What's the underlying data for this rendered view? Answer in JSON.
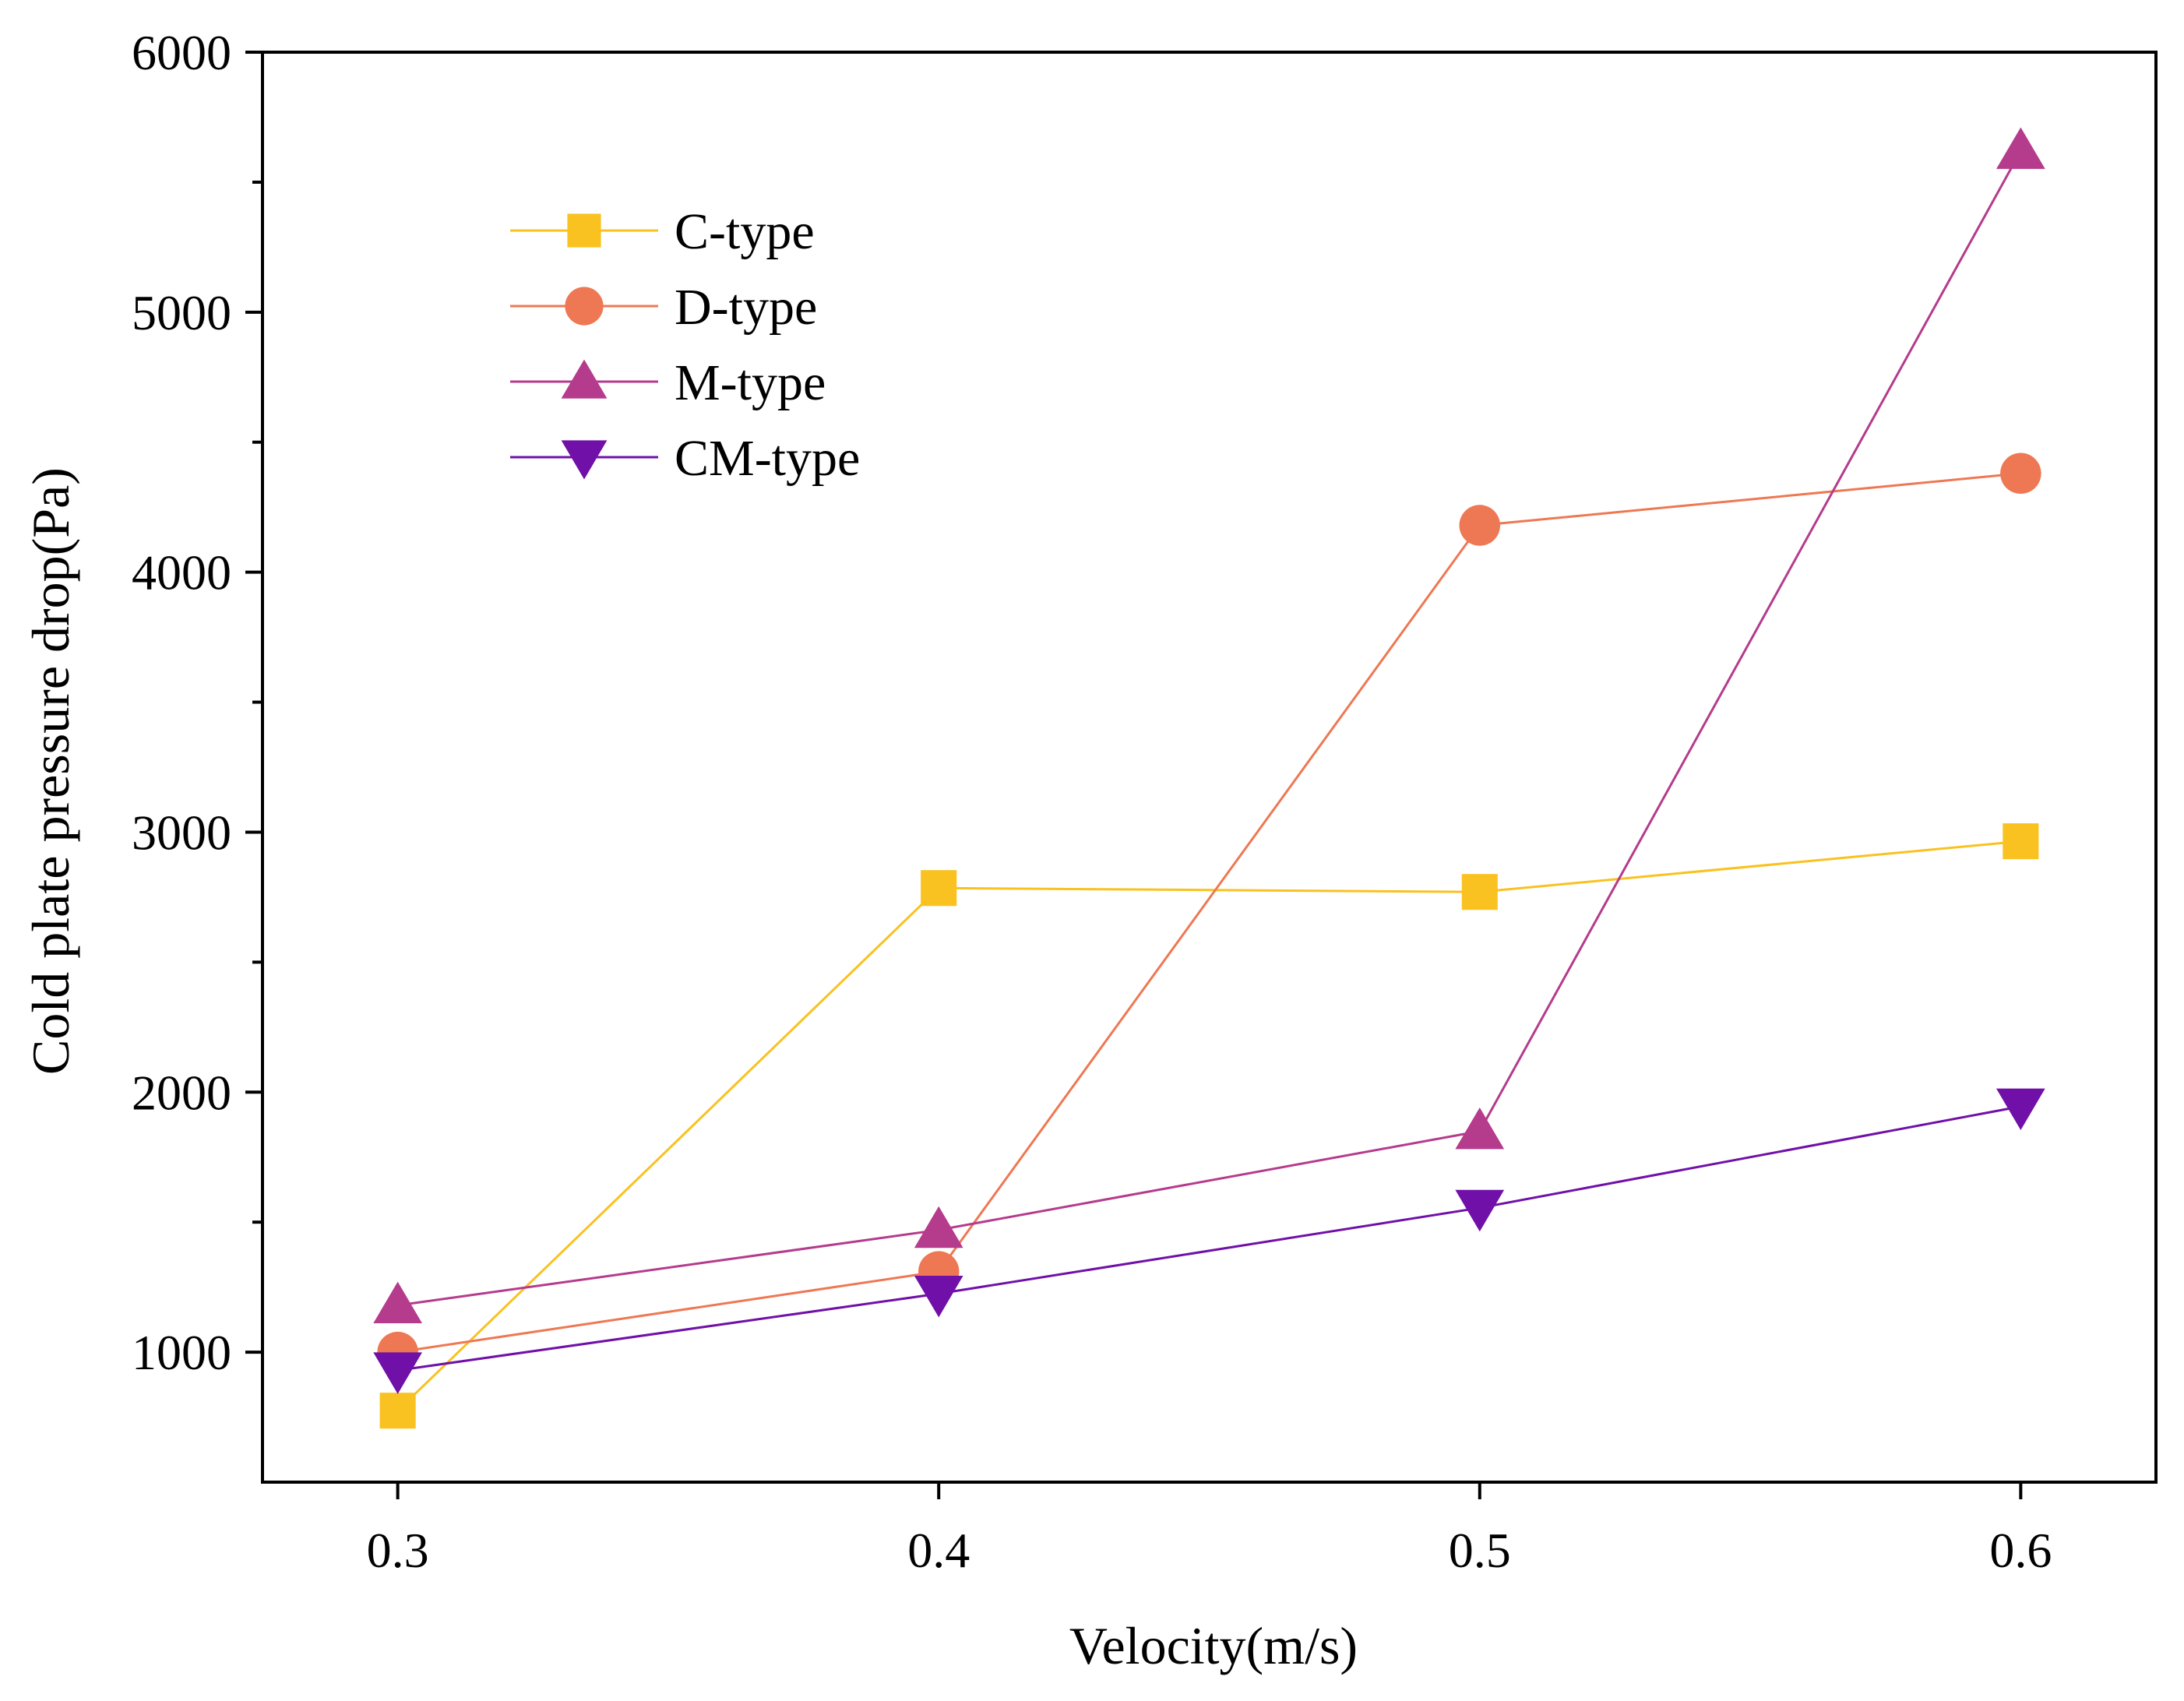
{
  "chart_data": {
    "type": "line",
    "xlabel": "Velocity(m/s)",
    "ylabel": "Cold plate pressure drop(Pa)",
    "x": [
      0.3,
      0.4,
      0.5,
      0.6
    ],
    "x_tick_labels": [
      "0.3",
      "0.4",
      "0.5",
      "0.6"
    ],
    "y_tick_labels": [
      "1000",
      "2000",
      "3000",
      "4000",
      "5000",
      "6000"
    ],
    "xlim": [
      0.275,
      0.625
    ],
    "ylim": [
      500,
      6000
    ],
    "y_major_ticks": [
      1000,
      2000,
      3000,
      4000,
      5000,
      6000
    ],
    "y_minor_ticks": [
      1500,
      2500,
      3500,
      4500,
      5500
    ],
    "grid": false,
    "legend_position": "top-left",
    "series": [
      {
        "name": "C-type",
        "marker": "square",
        "color": "#F9C221",
        "values": [
          775,
          2785,
          2770,
          2965
        ]
      },
      {
        "name": "D-type",
        "marker": "circle",
        "color": "#EE7853",
        "values": [
          1000,
          1310,
          4180,
          4380
        ]
      },
      {
        "name": "M-type",
        "marker": "triangle-up",
        "color": "#B53B8C",
        "values": [
          1180,
          1470,
          1850,
          5620
        ]
      },
      {
        "name": "CM-type",
        "marker": "triangle-down",
        "color": "#7010A8",
        "values": [
          930,
          1225,
          1555,
          1945
        ]
      }
    ]
  }
}
